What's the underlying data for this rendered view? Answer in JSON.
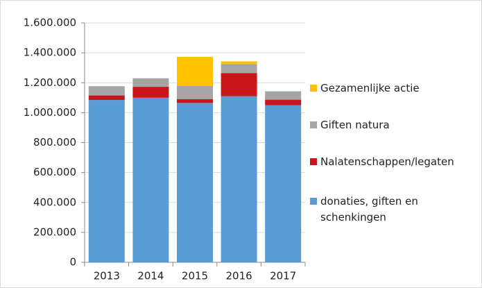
{
  "chart_data": {
    "type": "stacked_bar",
    "categories": [
      "2013",
      "2014",
      "2015",
      "2016",
      "2017"
    ],
    "series": [
      {
        "name": "donaties, giften en schenkingen",
        "color": "#5b9bd5",
        "values": [
          1085000,
          1100000,
          1065000,
          1110000,
          1050000
        ]
      },
      {
        "name": "Nalatenschappen/legaten",
        "color": "#c9161b",
        "values": [
          30000,
          73000,
          25000,
          155000,
          37000
        ]
      },
      {
        "name": "Giften natura",
        "color": "#a5a5a5",
        "values": [
          62000,
          57000,
          88000,
          60000,
          56000
        ]
      },
      {
        "name": "Gezamenlijke actie",
        "color": "#ffc000",
        "values": [
          0,
          0,
          195000,
          18000,
          0
        ]
      }
    ],
    "ylim": [
      0,
      1600000
    ],
    "yticks": [
      0,
      {
        "value": 200000,
        "label": "200.000"
      },
      {
        "value": 400000,
        "label": "400.000"
      },
      {
        "value": 600000,
        "label": "600.000"
      },
      {
        "value": 800000,
        "label": "800.000"
      },
      {
        "value": 1000000,
        "label": "1.000.000"
      },
      {
        "value": 1200000,
        "label": "1.200.000"
      },
      {
        "value": 1400000,
        "label": "1.400.000"
      },
      {
        "value": 1600000,
        "label": "1.600.000"
      }
    ],
    "grid": true,
    "legend": "right"
  }
}
